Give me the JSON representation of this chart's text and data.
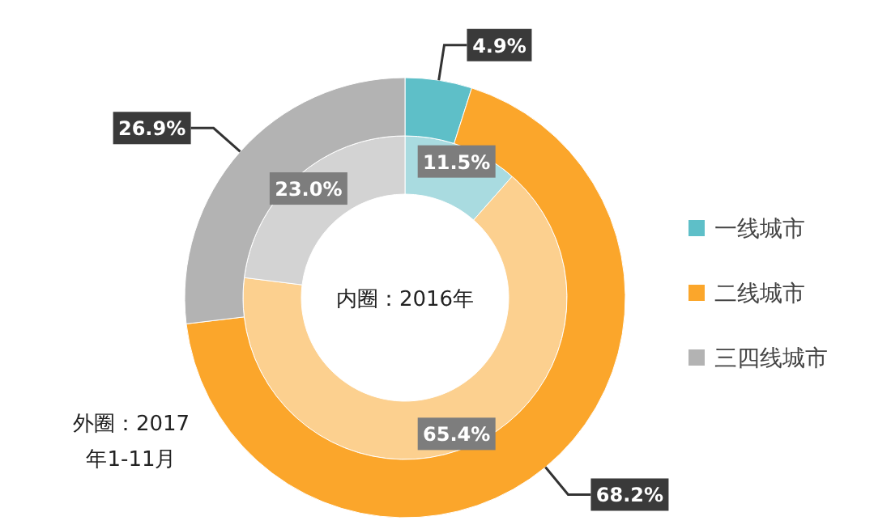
{
  "chart_data": {
    "type": "donut",
    "categories": [
      "一线城市",
      "二线城市",
      "三四线城市"
    ],
    "series": [
      {
        "values": [
          11.5,
          65.4,
          23.0
        ],
        "value_labels": [
          "11.5%",
          "65.4%",
          "23.0%"
        ],
        "colors": [
          "#a9dbe0",
          "#fcd08f",
          "#d3d3d3"
        ]
      },
      {
        "values": [
          4.9,
          68.2,
          26.9
        ],
        "value_labels": [
          "4.9%",
          "68.2%",
          "26.9%"
        ],
        "colors": [
          "#5ebfc8",
          "#fba62b",
          "#b3b3b3"
        ]
      }
    ],
    "legend": "right",
    "annotations": [
      "内圈：2016年",
      "外圈：2017年1-11月"
    ]
  }
}
